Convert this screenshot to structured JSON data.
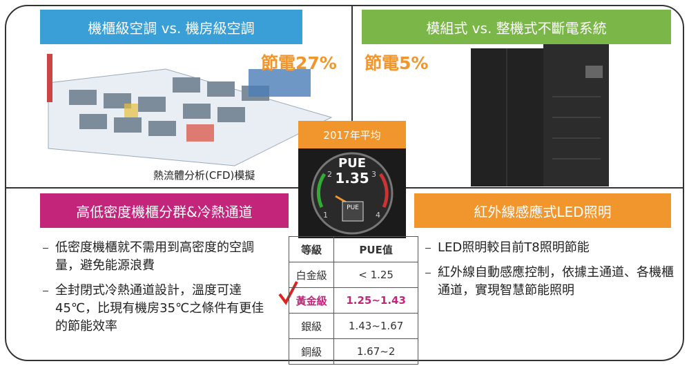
{
  "quadrants": {
    "top_left": {
      "header": "機櫃級空調 vs. 機房級空調",
      "saving": "節電27%",
      "caption": "熱流體分析(CFD)模擬"
    },
    "top_right": {
      "header": "模組式 vs. 整機式不斷電系統",
      "saving": "節電5%"
    },
    "bottom_left": {
      "header": "高低密度機櫃分群&冷熱通道",
      "bullets": [
        "低密度機櫃就不需用到高密度的空調量，避免能源浪費",
        "全封閉式冷熱通道設計，溫度可達45℃，比現有機房35℃之條件有更佳的節能效率"
      ]
    },
    "bottom_right": {
      "header": "紅外線感應式LED照明",
      "bullets": [
        "LED照明較目前T8照明節能",
        "紅外線自動感應控制，依據主通道、各機櫃通道，實現智慧節能照明"
      ]
    }
  },
  "center": {
    "label": "2017年平均",
    "gauge": {
      "title": "PUE",
      "value": "1.35",
      "small_title": "PUE",
      "scale": [
        "1",
        "2",
        "3",
        "4"
      ]
    }
  },
  "table": {
    "header": [
      "等級",
      "PUE值"
    ],
    "rows": [
      [
        "白金級",
        "< 1.25"
      ],
      [
        "黃金級",
        "1.25~1.43"
      ],
      [
        "銀級",
        "1.43~1.67"
      ],
      [
        "銅級",
        "1.67~2"
      ]
    ],
    "highlight_row": 1
  }
}
